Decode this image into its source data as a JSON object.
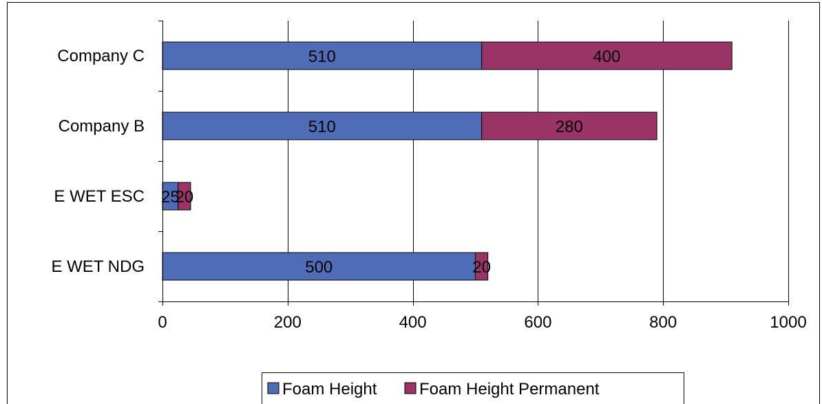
{
  "colors": {
    "series_0": "#4F6CB6",
    "series_1": "#9B3466",
    "gridline": "#000000",
    "frame": "#000000",
    "background": "#ffffff"
  },
  "chart_data": {
    "type": "bar",
    "orientation": "horizontal",
    "stacked": true,
    "title": "",
    "xlabel": "",
    "ylabel": "",
    "categories": [
      "E WET NDG",
      "E WET ESC",
      "Company B",
      "Company  C"
    ],
    "series": [
      {
        "name": "Foam Height",
        "values": [
          500,
          25,
          510,
          510
        ]
      },
      {
        "name": "Foam Height Permanent",
        "values": [
          20,
          20,
          280,
          400
        ]
      }
    ],
    "xlim": [
      0,
      1000
    ],
    "xticks": [
      0,
      200,
      400,
      600,
      800,
      1000
    ],
    "xtick_labels": [
      "0",
      "200",
      "400",
      "600",
      "800",
      "1000"
    ],
    "data_labels": [
      [
        "500",
        "25",
        "510",
        "510"
      ],
      [
        "20",
        "20",
        "280",
        "400"
      ]
    ],
    "grid": "vertical major gridlines",
    "legend": "bottom"
  }
}
